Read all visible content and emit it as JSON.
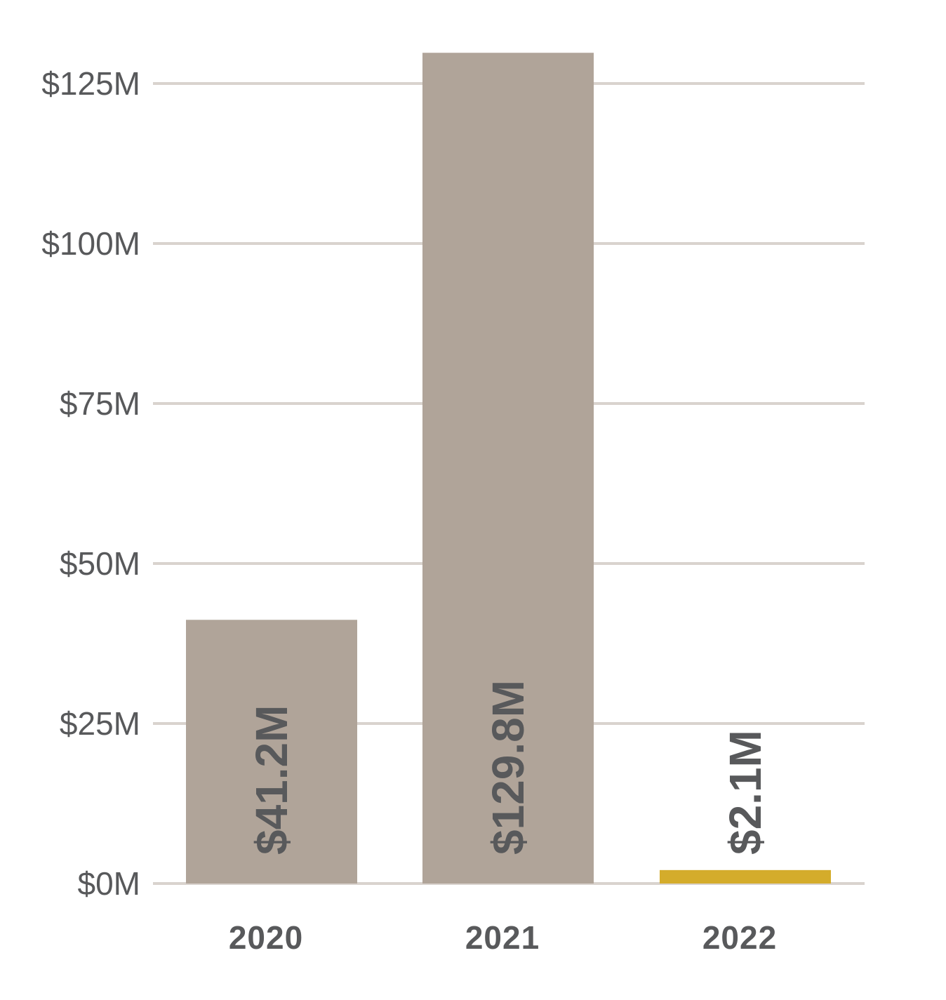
{
  "chart_data": {
    "type": "bar",
    "title": "",
    "xlabel": "",
    "ylabel": "",
    "categories": [
      "2020",
      "2021",
      "2022"
    ],
    "values": [
      41.2,
      129.8,
      2.1
    ],
    "value_labels": [
      "$41.2M",
      "$129.8M",
      "$2.1M"
    ],
    "bar_colors": [
      "#b0a499",
      "#b0a499",
      "#d4ac2b"
    ],
    "ylim": [
      0,
      130
    ],
    "y_ticks": [
      0,
      25,
      50,
      75,
      100,
      125
    ],
    "y_tick_labels": [
      "$0M",
      "$25M",
      "$50M",
      "$75M",
      "$100M",
      "$125M"
    ],
    "grid": true,
    "gridline_color": "#d9d3ce",
    "text_color": "#58595b"
  }
}
